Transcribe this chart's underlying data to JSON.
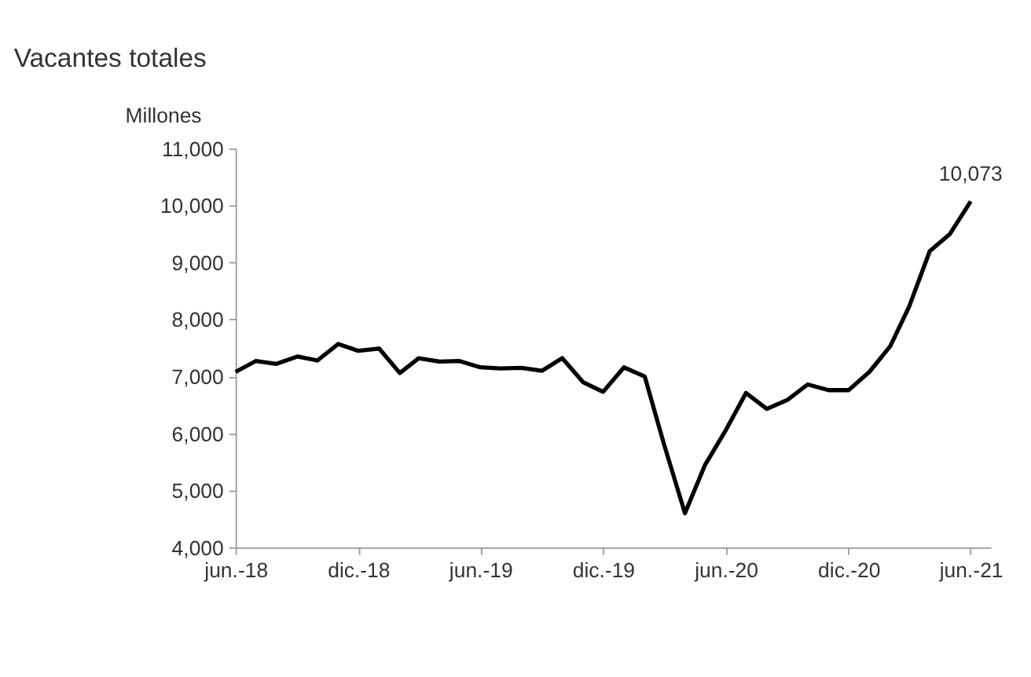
{
  "chart_data": {
    "type": "line",
    "title": "Vacantes totales",
    "ylabel": "Millones",
    "x": [
      "2018-06",
      "2018-07",
      "2018-08",
      "2018-09",
      "2018-10",
      "2018-11",
      "2018-12",
      "2019-01",
      "2019-02",
      "2019-03",
      "2019-04",
      "2019-05",
      "2019-06",
      "2019-07",
      "2019-08",
      "2019-09",
      "2019-10",
      "2019-11",
      "2019-12",
      "2020-01",
      "2020-02",
      "2020-03",
      "2020-04",
      "2020-05",
      "2020-06",
      "2020-07",
      "2020-08",
      "2020-09",
      "2020-10",
      "2020-11",
      "2020-12",
      "2021-01",
      "2021-02",
      "2021-03",
      "2021-04",
      "2021-05",
      "2021-06"
    ],
    "series": [
      {
        "color": "#000000",
        "values": [
          7080,
          7270,
          7220,
          7350,
          7280,
          7570,
          7450,
          7490,
          7060,
          7320,
          7260,
          7270,
          7160,
          7140,
          7150,
          7100,
          7320,
          6900,
          6730,
          7160,
          7000,
          5800,
          4600,
          5450,
          6060,
          6710,
          6430,
          6590,
          6860,
          6760,
          6760,
          7080,
          7530,
          8220,
          9200,
          9500,
          10073
        ]
      }
    ],
    "xlim": [
      "2018-06",
      "2021-07"
    ],
    "xticks": [
      {
        "value": "2018-06",
        "label": "jun.-18"
      },
      {
        "value": "2018-12",
        "label": "dic.-18"
      },
      {
        "value": "2019-06",
        "label": "jun.-19"
      },
      {
        "value": "2019-12",
        "label": "dic.-19"
      },
      {
        "value": "2020-06",
        "label": "jun.-20"
      },
      {
        "value": "2020-12",
        "label": "dic.-20"
      },
      {
        "value": "2021-06",
        "label": "jun.-21"
      }
    ],
    "ylim": [
      4000,
      11000
    ],
    "yticks": [
      {
        "value": 4000,
        "label": "4,000"
      },
      {
        "value": 5000,
        "label": "5,000"
      },
      {
        "value": 6000,
        "label": "6,000"
      },
      {
        "value": 7000,
        "label": "7,000"
      },
      {
        "value": 8000,
        "label": "8,000"
      },
      {
        "value": 9000,
        "label": "9,000"
      },
      {
        "value": 10000,
        "label": "10,000"
      },
      {
        "value": 11000,
        "label": "11,000"
      }
    ],
    "annotations": [
      {
        "text": "10,073",
        "x": "2021-06",
        "y": 10073
      }
    ],
    "grid": false,
    "marker": "none",
    "line_style": "solid"
  }
}
